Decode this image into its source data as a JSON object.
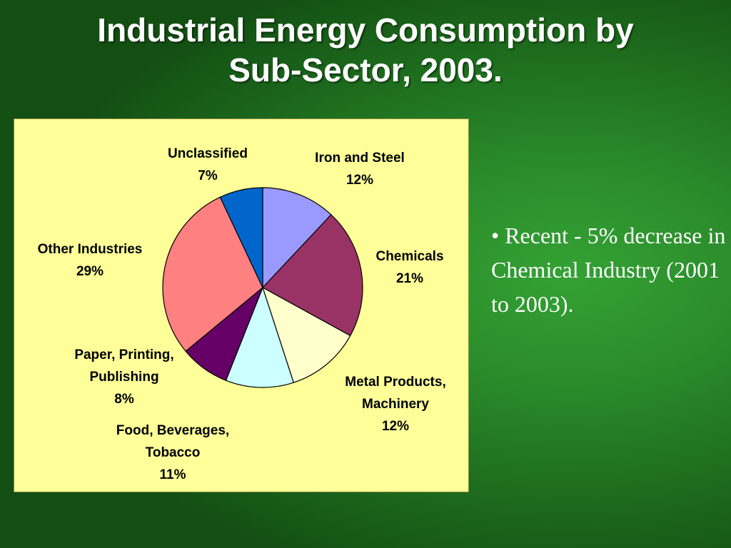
{
  "slide": {
    "title_line1": "Industrial Energy Consumption by",
    "title_line2": "Sub-Sector, 2003.",
    "bullet_text": "• Recent - 5% decrease in Chemical Industry (2001 to 2003)."
  },
  "colors": {
    "chart_background": "#ffff99",
    "slide_background": "#2a8a2a"
  },
  "chart_data": {
    "type": "pie",
    "title": "",
    "slices": [
      {
        "name": "Iron and Steel",
        "label_lines": [
          "Iron and Steel",
          "12%"
        ],
        "value": 12,
        "color": "#9999ff"
      },
      {
        "name": "Chemicals",
        "label_lines": [
          "Chemicals",
          "21%"
        ],
        "value": 21,
        "color": "#993366"
      },
      {
        "name": "Metal Products, Machinery",
        "label_lines": [
          "Metal Products,",
          "Machinery",
          "12%"
        ],
        "value": 12,
        "color": "#ffffcc"
      },
      {
        "name": "Food, Beverages, Tobacco",
        "label_lines": [
          "Food, Beverages,",
          "Tobacco",
          "11%"
        ],
        "value": 11,
        "color": "#ccffff"
      },
      {
        "name": "Paper, Printing, Publishing",
        "label_lines": [
          "Paper, Printing,",
          "Publishing",
          "8%"
        ],
        "value": 8,
        "color": "#660066"
      },
      {
        "name": "Other Industries",
        "label_lines": [
          "Other Industries",
          "29%"
        ],
        "value": 29,
        "color": "#ff8080"
      },
      {
        "name": "Unclassified",
        "label_lines": [
          "Unclassified",
          "7%"
        ],
        "value": 7,
        "color": "#0066cc"
      }
    ]
  }
}
